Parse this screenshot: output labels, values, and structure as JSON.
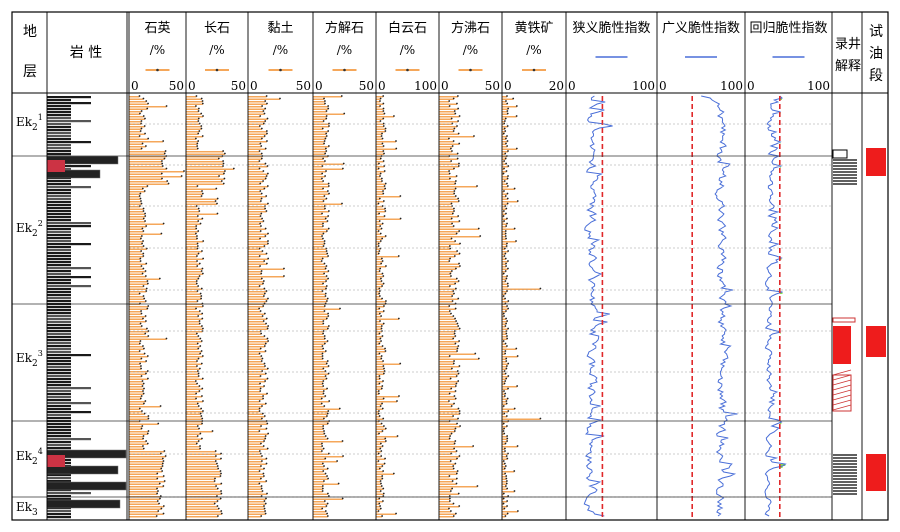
{
  "strata": [
    "1",
    "2",
    "3",
    "4",
    "3"
  ],
  "strata_base": "Ek",
  "header": {
    "stratum": [
      "地",
      "层"
    ],
    "lithology": "岩  性",
    "log_interp": [
      "录井",
      "解释"
    ],
    "test_oil": [
      "试",
      "油",
      "段"
    ]
  },
  "colors": {
    "mineral": "#f5a75a",
    "brittleness": "#4a6fd8",
    "cutoff": "#e0282a",
    "fill_green": "#8be04a",
    "test_red": "#ee1c1c"
  },
  "chart_data": [
    {
      "type": "bar",
      "title": "石英",
      "unit": "/%",
      "xlim": [
        0,
        50
      ],
      "ticks": [
        "0",
        "50"
      ]
    },
    {
      "type": "bar",
      "title": "长石",
      "unit": "/%",
      "xlim": [
        0,
        50
      ],
      "ticks": [
        "0",
        "50"
      ]
    },
    {
      "type": "bar",
      "title": "黏土",
      "unit": "/%",
      "xlim": [
        0,
        50
      ],
      "ticks": [
        "0",
        "50"
      ]
    },
    {
      "type": "bar",
      "title": "方解石",
      "unit": "/%",
      "xlim": [
        0,
        50
      ],
      "ticks": [
        "0",
        "50"
      ]
    },
    {
      "type": "bar",
      "title": "白云石",
      "unit": "/%",
      "xlim": [
        0,
        100
      ],
      "ticks": [
        "0",
        "100"
      ]
    },
    {
      "type": "bar",
      "title": "方沸石",
      "unit": "/%",
      "xlim": [
        0,
        50
      ],
      "ticks": [
        "0",
        "50"
      ]
    },
    {
      "type": "bar",
      "title": "黄铁矿",
      "unit": "/%",
      "xlim": [
        0,
        20
      ],
      "ticks": [
        "0",
        "20"
      ]
    },
    {
      "type": "line",
      "title": "狭义脆性指数",
      "xlim": [
        0,
        100
      ],
      "ticks": [
        "0",
        "100"
      ],
      "cutoff": 40
    },
    {
      "type": "line",
      "title": "广义脆性指数",
      "xlim": [
        0,
        100
      ],
      "ticks": [
        "0",
        "100"
      ],
      "cutoff": 40
    },
    {
      "type": "line",
      "title": "回归脆性指数",
      "xlim": [
        0,
        100
      ],
      "ticks": [
        "0",
        "100"
      ],
      "cutoff": 40
    }
  ]
}
